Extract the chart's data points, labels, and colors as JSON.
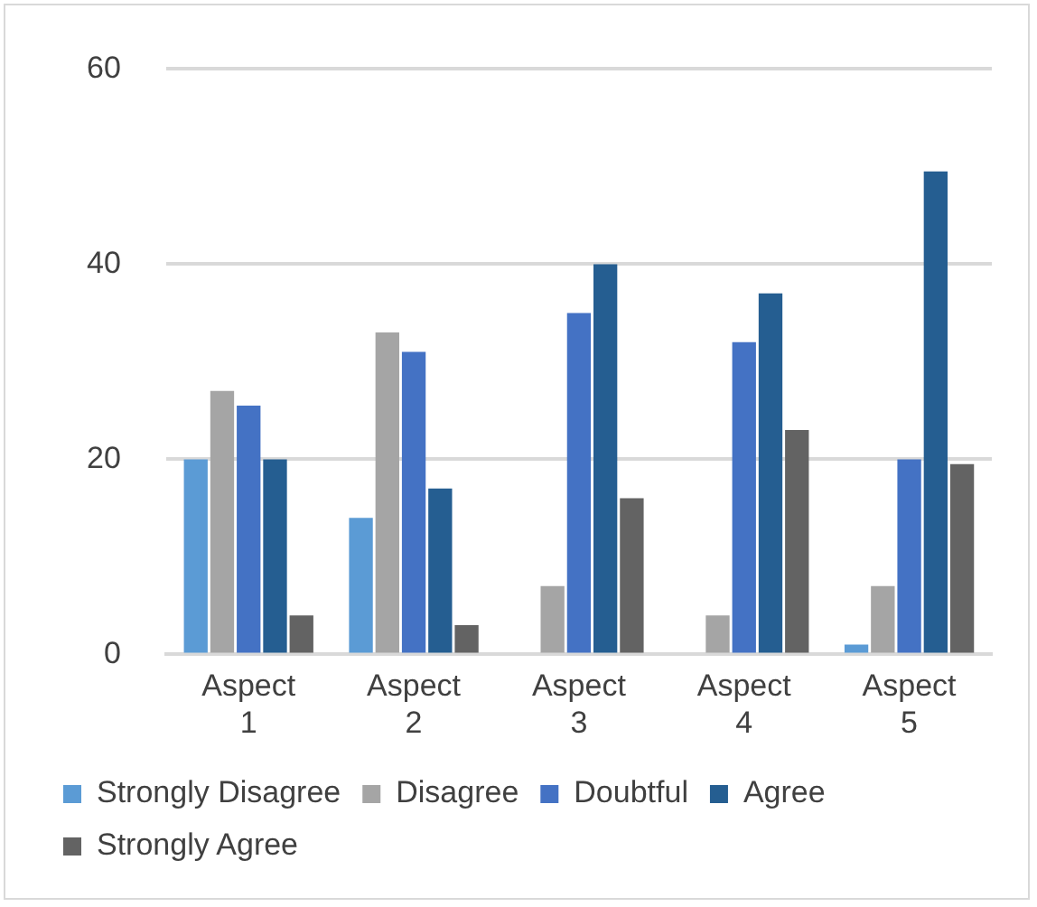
{
  "chart_data": {
    "type": "bar",
    "categories": [
      "Aspect 1",
      "Aspect 2",
      "Aspect 3",
      "Aspect 4",
      "Aspect 5"
    ],
    "series": [
      {
        "name": "Strongly Disagree",
        "color": "#5b9bd5",
        "values": [
          20,
          14,
          0,
          0,
          1
        ]
      },
      {
        "name": "Disagree",
        "color": "#a5a5a5",
        "values": [
          27,
          33,
          7,
          4,
          7
        ]
      },
      {
        "name": "Doubtful",
        "color": "#4472c4",
        "values": [
          25.5,
          31,
          35,
          32,
          20
        ]
      },
      {
        "name": "Agree",
        "color": "#255e91",
        "values": [
          20,
          17,
          40,
          37,
          49.5
        ]
      },
      {
        "name": "Strongly Agree",
        "color": "#636363",
        "values": [
          4,
          3,
          16,
          23,
          19.5
        ]
      }
    ],
    "ylim": [
      0,
      60
    ],
    "yticks": [
      0,
      20,
      40,
      60
    ],
    "grid": "y",
    "legend": "bottom"
  }
}
